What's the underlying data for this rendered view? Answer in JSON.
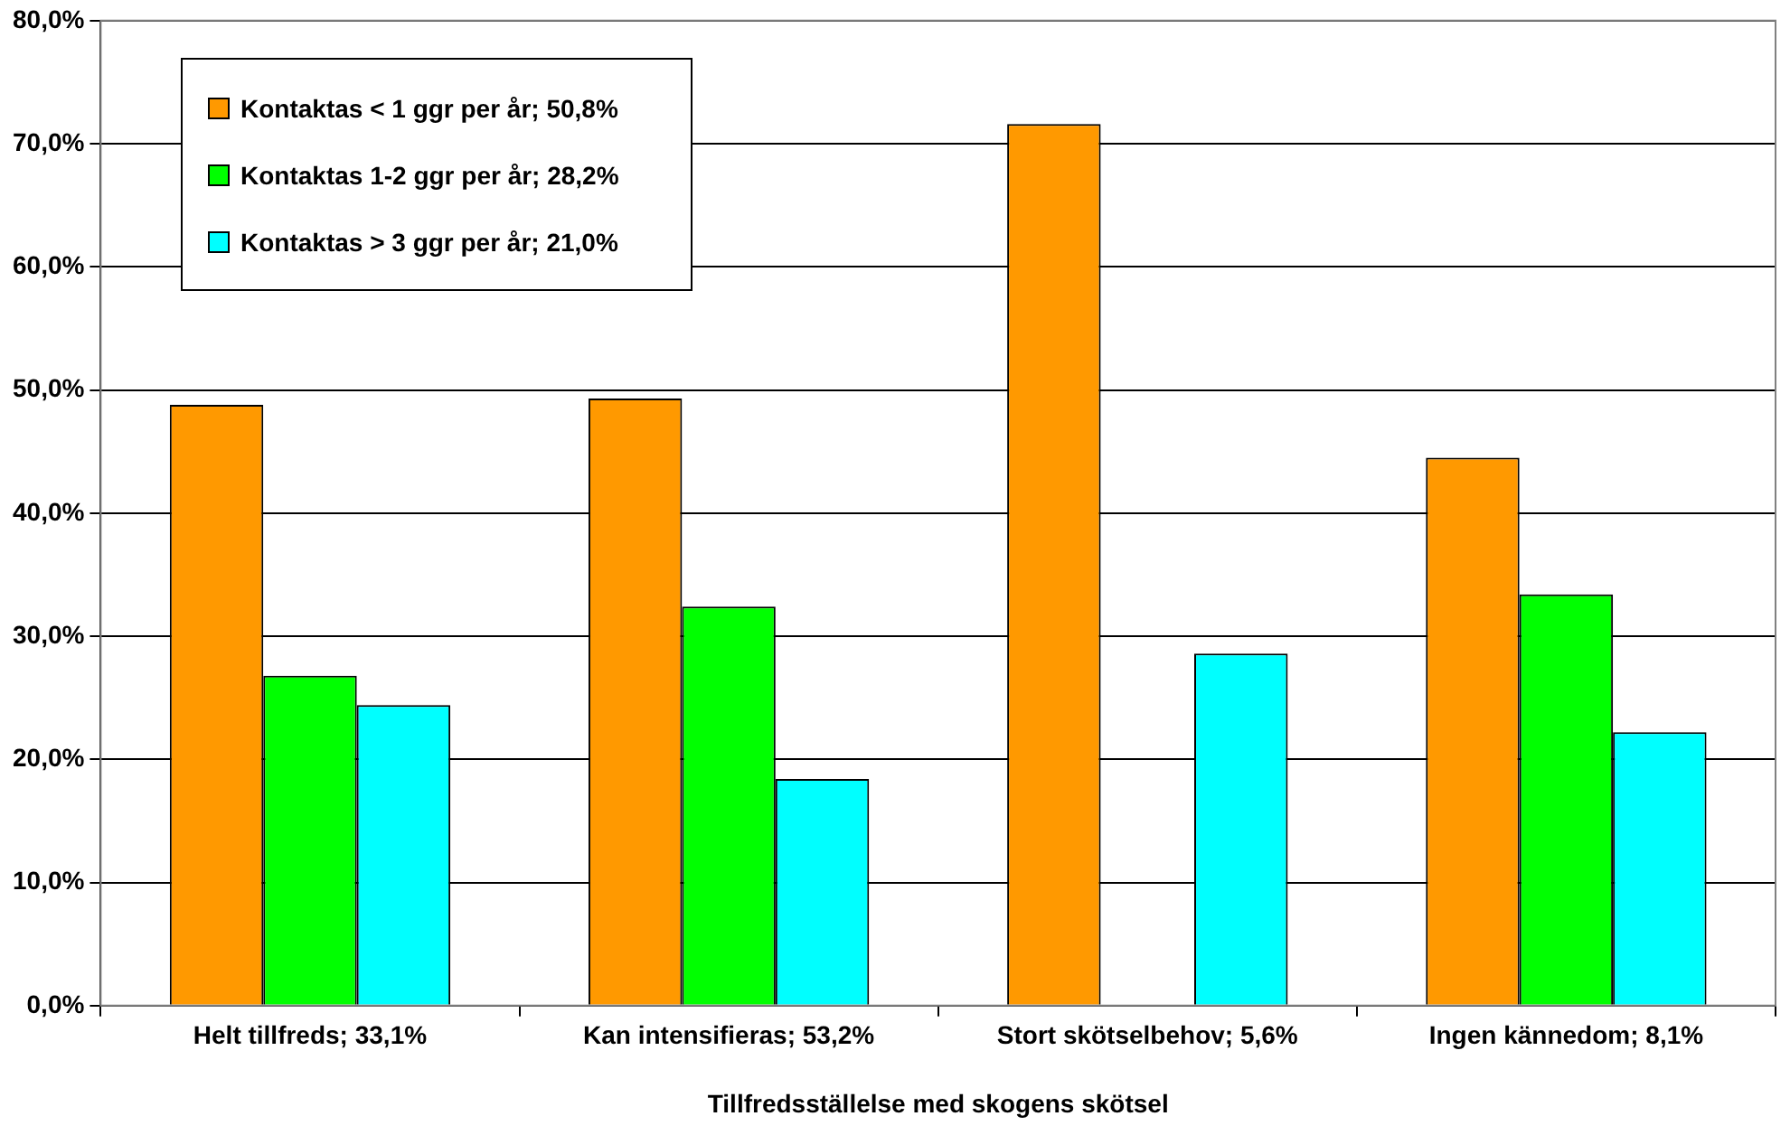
{
  "chart_data": {
    "type": "bar",
    "xlabel": "Tillfredsställelse med skogens skötsel",
    "categories": [
      "Helt tillfreds; 33,1%",
      "Kan intensifieras; 53,2%",
      "Stort skötselbehov; 5,6%",
      "Ingen kännedom; 8,1%"
    ],
    "series": [
      {
        "name": "Kontaktas < 1 ggr per år; 50,8%",
        "color": "#ff9900",
        "values": [
          48.8,
          49.3,
          71.6,
          44.5
        ]
      },
      {
        "name": "Kontaktas 1-2 ggr per år; 28,2%",
        "color": "#00ff00",
        "values": [
          26.8,
          32.4,
          0,
          33.4
        ]
      },
      {
        "name": "Kontaktas > 3 ggr per år; 21,0%",
        "color": "#00ffff",
        "values": [
          24.4,
          18.4,
          28.6,
          22.2
        ]
      }
    ],
    "ylim": [
      0,
      80
    ],
    "yticks": [
      {
        "value": 0,
        "label": "0,0%"
      },
      {
        "value": 10,
        "label": "10,0%"
      },
      {
        "value": 20,
        "label": "20,0%"
      },
      {
        "value": 30,
        "label": "30,0%"
      },
      {
        "value": 40,
        "label": "40,0%"
      },
      {
        "value": 50,
        "label": "50,0%"
      },
      {
        "value": 60,
        "label": "60,0%"
      },
      {
        "value": 70,
        "label": "70,0%"
      },
      {
        "value": 80,
        "label": "80,0%"
      }
    ],
    "grid": "y",
    "legend": "top left"
  }
}
